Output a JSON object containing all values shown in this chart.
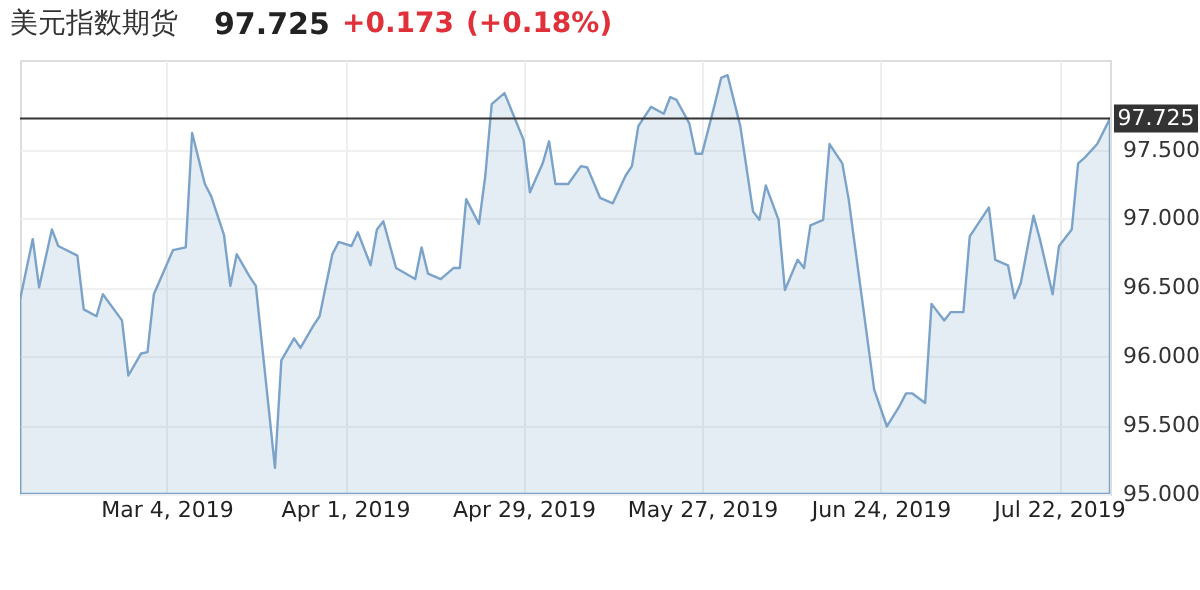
{
  "chart_data": {
    "type": "area",
    "title": "美元指数期货",
    "annotations": [
      "97.725",
      "+0.173",
      "(+0.18%)"
    ],
    "x": [
      "2019-02-09",
      "2019-02-11",
      "2019-02-12",
      "2019-02-14",
      "2019-02-15",
      "2019-02-18",
      "2019-02-19",
      "2019-02-21",
      "2019-02-22",
      "2019-02-25",
      "2019-02-26",
      "2019-02-28",
      "2019-03-01",
      "2019-03-02",
      "2019-03-05",
      "2019-03-07",
      "2019-03-08",
      "2019-03-10",
      "2019-03-11",
      "2019-03-13",
      "2019-03-14",
      "2019-03-15",
      "2019-03-17",
      "2019-03-18",
      "2019-03-21",
      "2019-03-22",
      "2019-03-24",
      "2019-03-25",
      "2019-03-27",
      "2019-03-28",
      "2019-03-30",
      "2019-03-31",
      "2019-04-02",
      "2019-04-03",
      "2019-04-05",
      "2019-04-06",
      "2019-04-07",
      "2019-04-09",
      "2019-04-12",
      "2019-04-13",
      "2019-04-14",
      "2019-04-16",
      "2019-04-18",
      "2019-04-19",
      "2019-04-20",
      "2019-04-22",
      "2019-04-23",
      "2019-04-24",
      "2019-04-26",
      "2019-04-29",
      "2019-04-30",
      "2019-05-02",
      "2019-05-03",
      "2019-05-04",
      "2019-05-06",
      "2019-05-08",
      "2019-05-09",
      "2019-05-11",
      "2019-05-13",
      "2019-05-15",
      "2019-05-16",
      "2019-05-17",
      "2019-05-19",
      "2019-05-21",
      "2019-05-22",
      "2019-05-23",
      "2019-05-25",
      "2019-05-26",
      "2019-05-27",
      "2019-05-29",
      "2019-05-30",
      "2019-05-31",
      "2019-06-02",
      "2019-06-04",
      "2019-06-05",
      "2019-06-06",
      "2019-06-08",
      "2019-06-09",
      "2019-06-11",
      "2019-06-12",
      "2019-06-13",
      "2019-06-15",
      "2019-06-16",
      "2019-06-18",
      "2019-06-19",
      "2019-06-23",
      "2019-06-25",
      "2019-06-27",
      "2019-06-28",
      "2019-06-29",
      "2019-07-01",
      "2019-07-02",
      "2019-07-04",
      "2019-07-05",
      "2019-07-07",
      "2019-07-08",
      "2019-07-11",
      "2019-07-12",
      "2019-07-14",
      "2019-07-15",
      "2019-07-16",
      "2019-07-18",
      "2019-07-19",
      "2019-07-21",
      "2019-07-22",
      "2019-07-24",
      "2019-07-25",
      "2019-07-26",
      "2019-07-28",
      "2019-07-30"
    ],
    "series": [
      {
        "color": "#7ba3c9",
        "values": [
          96.41,
          96.85,
          96.5,
          96.92,
          96.8,
          96.73,
          96.34,
          96.29,
          96.45,
          96.26,
          95.86,
          96.02,
          96.03,
          96.45,
          96.77,
          96.79,
          97.62,
          97.25,
          97.16,
          96.88,
          96.51,
          96.74,
          96.58,
          96.51,
          95.19,
          95.97,
          96.13,
          96.06,
          96.22,
          96.29,
          96.74,
          96.83,
          96.8,
          96.9,
          96.66,
          96.92,
          96.98,
          96.64,
          96.56,
          96.79,
          96.6,
          96.56,
          96.64,
          96.64,
          97.14,
          96.96,
          97.31,
          97.83,
          97.91,
          97.57,
          97.19,
          97.4,
          97.56,
          97.25,
          97.25,
          97.38,
          97.37,
          97.15,
          97.11,
          97.31,
          97.38,
          97.67,
          97.81,
          97.76,
          97.88,
          97.86,
          97.69,
          97.47,
          97.47,
          97.83,
          98.02,
          98.04,
          97.67,
          97.05,
          96.99,
          97.24,
          96.99,
          96.48,
          96.7,
          96.64,
          96.95,
          96.99,
          97.54,
          97.4,
          97.14,
          95.76,
          95.49,
          95.64,
          95.73,
          95.73,
          95.66,
          96.38,
          96.26,
          96.32,
          96.32,
          96.87,
          97.08,
          96.7,
          96.66,
          96.42,
          96.53,
          97.02,
          96.85,
          96.45,
          96.8,
          96.92,
          97.4,
          97.44,
          97.54,
          97.725
        ]
      }
    ],
    "xlim": [
      "2019-02-09",
      "2019-07-30"
    ],
    "xticks": [
      {
        "value": "2019-03-04",
        "label": "Mar 4, 2019"
      },
      {
        "value": "2019-04-01",
        "label": "Apr 1, 2019"
      },
      {
        "value": "2019-04-29",
        "label": "Apr 29, 2019"
      },
      {
        "value": "2019-05-27",
        "label": "May 27, 2019"
      },
      {
        "value": "2019-06-24",
        "label": "Jun 24, 2019"
      },
      {
        "value": "2019-07-22",
        "label": "Jul 22, 2019"
      }
    ],
    "ylim": [
      95,
      98.15
    ],
    "yticks": [
      {
        "value": 95,
        "label": "95.000"
      },
      {
        "value": 95.5,
        "label": "95.500"
      },
      {
        "value": 96,
        "label": "96.000"
      },
      {
        "value": 96.5,
        "label": "96.500"
      },
      {
        "value": 97,
        "label": "97.000"
      },
      {
        "value": 97.5,
        "label": "97.500"
      }
    ],
    "ref_lines": [
      {
        "axis": "y",
        "value": 97.725,
        "label": "97.725",
        "color": "#333333"
      }
    ],
    "grid": true,
    "marker": "none",
    "line_style": "solid"
  }
}
